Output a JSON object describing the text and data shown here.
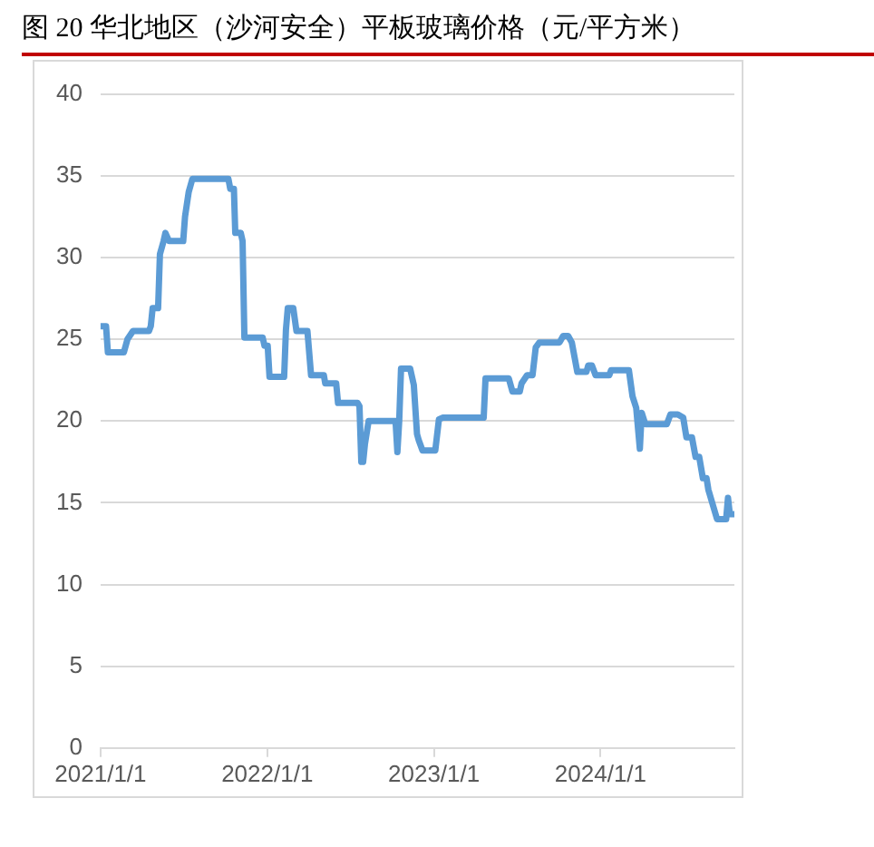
{
  "chart_data": {
    "type": "line",
    "title": "图 20 华北地区（沙河安全）平板玻璃价格（元/平方米）",
    "x": [
      "2021-01-01",
      "2021-01-13",
      "2021-01-17",
      "2021-02-21",
      "2021-03-01",
      "2021-03-13",
      "2021-04-17",
      "2021-04-21",
      "2021-04-25",
      "2021-05-07",
      "2021-05-11",
      "2021-05-19",
      "2021-05-23",
      "2021-05-31",
      "2021-07-01",
      "2021-07-05",
      "2021-07-13",
      "2021-07-21",
      "2021-10-08",
      "2021-10-12",
      "2021-10-20",
      "2021-10-23",
      "2021-11-04",
      "2021-11-08",
      "2021-11-12",
      "2021-12-22",
      "2021-12-26",
      "2022-01-02",
      "2022-01-06",
      "2022-02-07",
      "2022-02-11",
      "2022-02-15",
      "2022-02-27",
      "2022-03-06",
      "2022-03-30",
      "2022-04-07",
      "2022-05-05",
      "2022-05-08",
      "2022-06-01",
      "2022-06-05",
      "2022-07-18",
      "2022-07-22",
      "2022-07-26",
      "2022-07-30",
      "2022-08-03",
      "2022-08-11",
      "2022-10-09",
      "2022-10-13",
      "2022-10-17",
      "2022-10-21",
      "2022-11-10",
      "2022-11-18",
      "2022-11-25",
      "2022-11-29",
      "2022-12-07",
      "2023-01-04",
      "2023-01-12",
      "2023-01-20",
      "2023-04-20",
      "2023-04-24",
      "2023-06-14",
      "2023-06-22",
      "2023-07-08",
      "2023-07-12",
      "2023-07-24",
      "2023-08-05",
      "2023-08-12",
      "2023-08-20",
      "2023-10-03",
      "2023-10-11",
      "2023-10-22",
      "2023-10-30",
      "2023-11-11",
      "2023-12-01",
      "2023-12-05",
      "2023-12-13",
      "2023-12-21",
      "2024-01-20",
      "2024-01-24",
      "2024-03-03",
      "2024-03-11",
      "2024-03-19",
      "2024-03-27",
      "2024-03-31",
      "2024-04-08",
      "2024-05-25",
      "2024-06-02",
      "2024-06-18",
      "2024-06-30",
      "2024-07-07",
      "2024-07-19",
      "2024-07-27",
      "2024-08-04",
      "2024-08-12",
      "2024-08-20",
      "2024-08-24",
      "2024-09-12",
      "2024-10-02",
      "2024-10-06",
      "2024-10-10",
      "2024-10-18"
    ],
    "series": [
      {
        "color": "#5b9bd5",
        "values": [
          25.8,
          25.8,
          24.2,
          24.2,
          25,
          25.5,
          25.5,
          25.8,
          26.9,
          26.9,
          30.2,
          31,
          31.5,
          31,
          31,
          32.5,
          34,
          34.8,
          34.8,
          34.2,
          34.2,
          31.5,
          31.5,
          31,
          25.1,
          25.1,
          24.6,
          24.6,
          22.7,
          22.7,
          25.6,
          26.9,
          26.9,
          25.5,
          25.5,
          22.8,
          22.8,
          22.3,
          22.3,
          21.1,
          21.1,
          20.9,
          17.5,
          17.5,
          18.6,
          20,
          20,
          18.1,
          20,
          23.2,
          23.2,
          22.2,
          19.2,
          18.8,
          18.2,
          18.2,
          20.1,
          20.2,
          20.2,
          22.6,
          22.6,
          21.8,
          21.8,
          22.3,
          22.8,
          22.8,
          24.5,
          24.8,
          24.8,
          25.2,
          25.2,
          24.8,
          23,
          23,
          23.4,
          23.4,
          22.8,
          22.8,
          23.1,
          23.1,
          21.5,
          20.8,
          18.3,
          20.5,
          19.8,
          19.8,
          20.4,
          20.4,
          20.2,
          19,
          19,
          17.8,
          17.8,
          16.5,
          16.5,
          15.8,
          14,
          14,
          15.3,
          14.3,
          14.3
        ]
      }
    ],
    "xlim": [
      "2021-01-01",
      "2024-10-20"
    ],
    "xticks": [
      {
        "value": "2021-01-01",
        "label": "2021/1/1"
      },
      {
        "value": "2022-01-01",
        "label": "2022/1/1"
      },
      {
        "value": "2023-01-01",
        "label": "2023/1/1"
      },
      {
        "value": "2024-01-01",
        "label": "2024/1/1"
      }
    ],
    "ylim": [
      0,
      40
    ],
    "yticks": [
      0,
      5,
      10,
      15,
      20,
      25,
      30,
      35,
      40
    ],
    "grid": "y",
    "marker": "none",
    "line_style": "solid"
  }
}
